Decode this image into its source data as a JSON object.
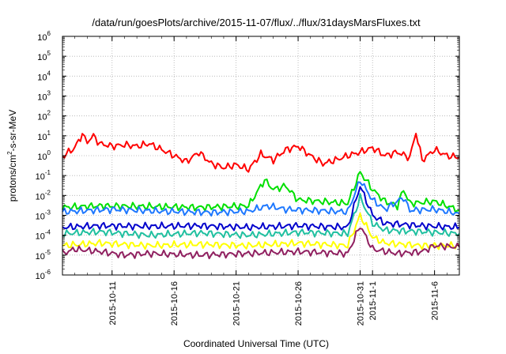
{
  "chart_data": {
    "type": "line",
    "title": "/data/run/goesPlots/archive/2015-11-07/flux/../flux/31daysMarsFluxes.txt",
    "xlabel": "Coordinated Universal Time (UTC)",
    "ylabel": {
      "pre": "protons/cm",
      "sup": "2",
      "post": "-s-sr-MeV"
    },
    "y_scale": "log",
    "ylim_exponents": [
      -6,
      6
    ],
    "y_tick_labels": [
      {
        "base": "10",
        "exp": "-6"
      },
      {
        "base": "10",
        "exp": "-5"
      },
      {
        "base": "10",
        "exp": "-4"
      },
      {
        "base": "10",
        "exp": "-3"
      },
      {
        "base": "10",
        "exp": "-2"
      },
      {
        "base": "10",
        "exp": "-1"
      },
      {
        "base": "10",
        "exp": "0"
      },
      {
        "base": "10",
        "exp": "1"
      },
      {
        "base": "10",
        "exp": "2"
      },
      {
        "base": "10",
        "exp": "3"
      },
      {
        "base": "10",
        "exp": "4"
      },
      {
        "base": "10",
        "exp": "5"
      },
      {
        "base": "10",
        "exp": "6"
      }
    ],
    "xlim": [
      "2015-10-07",
      "2015-11-08"
    ],
    "x_tick_labels": [
      "2015-10-11",
      "2015-10-16",
      "2015-10-21",
      "2015-10-26",
      "2015-10-31",
      "2015-11-1",
      "2015-11-6"
    ],
    "grid": true,
    "legend": "none",
    "series": [
      {
        "color": "#ff0000",
        "points": [
          [
            "2015-10-07",
            0.9
          ],
          [
            "2015-10-08",
            2.5
          ],
          [
            "2015-10-08.6",
            12
          ],
          [
            "2015-10-09",
            5
          ],
          [
            "2015-10-09.5",
            10
          ],
          [
            "2015-10-10",
            4
          ],
          [
            "2015-10-11",
            3
          ],
          [
            "2015-10-12",
            3.5
          ],
          [
            "2015-10-13",
            3
          ],
          [
            "2015-10-14",
            4
          ],
          [
            "2015-10-15",
            2
          ],
          [
            "2015-10-16",
            1
          ],
          [
            "2015-10-17",
            0.5
          ],
          [
            "2015-10-18",
            1.5
          ],
          [
            "2015-10-19",
            0.4
          ],
          [
            "2015-10-20",
            0.25
          ],
          [
            "2015-10-21",
            0.35
          ],
          [
            "2015-10-22",
            0.2
          ],
          [
            "2015-10-23",
            1.2
          ],
          [
            "2015-10-24",
            0.6
          ],
          [
            "2015-10-25",
            2
          ],
          [
            "2015-10-26",
            3
          ],
          [
            "2015-10-27",
            1
          ],
          [
            "2015-10-28",
            0.4
          ],
          [
            "2015-10-29",
            0.6
          ],
          [
            "2015-10-30",
            1
          ],
          [
            "2015-10-31",
            1.5
          ],
          [
            "2015-11-01",
            2.5
          ],
          [
            "2015-11-02",
            1
          ],
          [
            "2015-11-03",
            1.5
          ],
          [
            "2015-11-04",
            0.8
          ],
          [
            "2015-11-04.5",
            15
          ],
          [
            "2015-11-05",
            0.6
          ],
          [
            "2015-11-06",
            2
          ],
          [
            "2015-11-07",
            1
          ],
          [
            "2015-11-08",
            0.8
          ]
        ]
      },
      {
        "color": "#00e000",
        "points": [
          [
            "2015-10-07",
            0.0025
          ],
          [
            "2015-10-10",
            0.003
          ],
          [
            "2015-10-14",
            0.0028
          ],
          [
            "2015-10-18",
            0.0025
          ],
          [
            "2015-10-22",
            0.003
          ],
          [
            "2015-10-23.3",
            0.06
          ],
          [
            "2015-10-24",
            0.02
          ],
          [
            "2015-10-25",
            0.03
          ],
          [
            "2015-10-26",
            0.006
          ],
          [
            "2015-10-30",
            0.004
          ],
          [
            "2015-10-31",
            0.15
          ],
          [
            "2015-11-01",
            0.02
          ],
          [
            "2015-11-02",
            0.005
          ],
          [
            "2015-11-03",
            0.003
          ],
          [
            "2015-11-03.5",
            0.02
          ],
          [
            "2015-11-04",
            0.004
          ],
          [
            "2015-11-06",
            0.005
          ],
          [
            "2015-11-08",
            0.0018
          ]
        ]
      },
      {
        "color": "#1e78ff",
        "points": [
          [
            "2015-10-07",
            0.0015
          ],
          [
            "2015-10-11",
            0.002
          ],
          [
            "2015-10-15",
            0.0016
          ],
          [
            "2015-10-19",
            0.0014
          ],
          [
            "2015-10-22",
            0.0016
          ],
          [
            "2015-10-23.5",
            0.003
          ],
          [
            "2015-10-25",
            0.002
          ],
          [
            "2015-10-28",
            0.0017
          ],
          [
            "2015-10-30",
            0.0015
          ],
          [
            "2015-10-31",
            0.06
          ],
          [
            "2015-11-01",
            0.006
          ],
          [
            "2015-11-02",
            0.002
          ],
          [
            "2015-11-03.5",
            0.008
          ],
          [
            "2015-11-04",
            0.0018
          ],
          [
            "2015-11-06",
            0.002
          ],
          [
            "2015-11-08",
            0.0012
          ]
        ]
      },
      {
        "color": "#0000cc",
        "points": [
          [
            "2015-10-07",
            0.00025
          ],
          [
            "2015-10-10",
            0.0003
          ],
          [
            "2015-10-14",
            0.00028
          ],
          [
            "2015-10-18",
            0.0003
          ],
          [
            "2015-10-22",
            0.00025
          ],
          [
            "2015-10-26",
            0.0003
          ],
          [
            "2015-10-30",
            0.00025
          ],
          [
            "2015-10-31",
            0.03
          ],
          [
            "2015-11-01",
            0.001
          ],
          [
            "2015-11-02",
            0.0004
          ],
          [
            "2015-11-05",
            0.0003
          ],
          [
            "2015-11-08",
            0.00025
          ]
        ]
      },
      {
        "color": "#20c0a0",
        "points": [
          [
            "2015-10-07",
            0.00012
          ],
          [
            "2015-10-10",
            0.00015
          ],
          [
            "2015-10-14",
            0.0001
          ],
          [
            "2015-10-18",
            0.00013
          ],
          [
            "2015-10-22",
            0.0001
          ],
          [
            "2015-10-26",
            0.00014
          ],
          [
            "2015-10-30",
            0.00012
          ],
          [
            "2015-10-31",
            0.008
          ],
          [
            "2015-11-01",
            0.0004
          ],
          [
            "2015-11-02",
            0.00018
          ],
          [
            "2015-11-05",
            0.00015
          ],
          [
            "2015-11-08",
            0.00012
          ]
        ]
      },
      {
        "color": "#ffff00",
        "points": [
          [
            "2015-10-07",
            3e-05
          ],
          [
            "2015-10-10",
            4e-05
          ],
          [
            "2015-10-14",
            3e-05
          ],
          [
            "2015-10-18",
            3.5e-05
          ],
          [
            "2015-10-22",
            3e-05
          ],
          [
            "2015-10-26",
            4e-05
          ],
          [
            "2015-10-30",
            3e-05
          ],
          [
            "2015-10-31",
            0.001
          ],
          [
            "2015-11-01",
            8e-05
          ],
          [
            "2015-11-02",
            4e-05
          ],
          [
            "2015-11-05",
            3e-05
          ],
          [
            "2015-11-08",
            3e-05
          ]
        ]
      },
      {
        "color": "#902060",
        "points": [
          [
            "2015-10-07",
            1.2e-05
          ],
          [
            "2015-10-08",
            2e-05
          ],
          [
            "2015-10-10",
            1.5e-05
          ],
          [
            "2015-10-12",
            1e-05
          ],
          [
            "2015-10-14",
            1.2e-05
          ],
          [
            "2015-10-18",
            1e-05
          ],
          [
            "2015-10-22",
            1.2e-05
          ],
          [
            "2015-10-26",
            1.5e-05
          ],
          [
            "2015-10-30",
            1.2e-05
          ],
          [
            "2015-10-31",
            0.0003
          ],
          [
            "2015-11-01",
            2e-05
          ],
          [
            "2015-11-03",
            1.2e-05
          ],
          [
            "2015-11-05",
            1.5e-05
          ],
          [
            "2015-11-06",
            3e-05
          ],
          [
            "2015-11-08",
            2.5e-05
          ]
        ]
      }
    ]
  }
}
